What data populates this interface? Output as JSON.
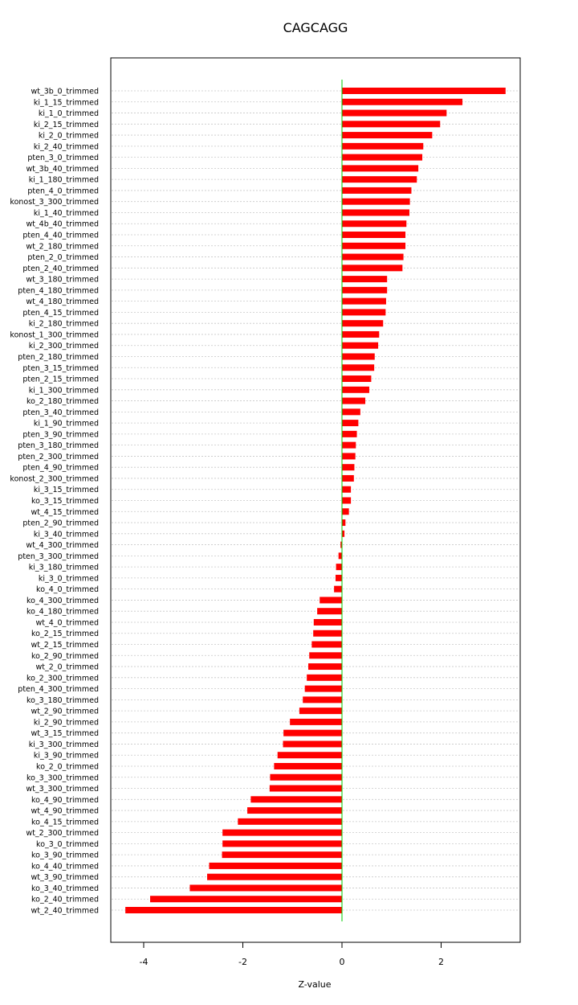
{
  "chart_data": {
    "type": "bar",
    "orientation": "horizontal",
    "title": "CAGCAGG",
    "xlabel": "Z-value",
    "ylabel": "",
    "xlim": [
      -4.6,
      3.6
    ],
    "xticks": [
      -4,
      -2,
      0,
      2
    ],
    "xtick_labels": [
      "-4",
      "-2",
      "0",
      "2"
    ],
    "grid": "horizontal dotted",
    "bar_color": "#ff0000",
    "zero_line_color": "#00cc00",
    "categories": [
      "wt_3b_0_trimmed",
      "ki_1_15_trimmed",
      "ki_1_0_trimmed",
      "ki_2_15_trimmed",
      "ki_2_0_trimmed",
      "ki_2_40_trimmed",
      "pten_3_0_trimmed",
      "wt_3b_40_trimmed",
      "ki_1_180_trimmed",
      "pten_4_0_trimmed",
      "konost_3_300_trimmed",
      "ki_1_40_trimmed",
      "wt_4b_40_trimmed",
      "pten_4_40_trimmed",
      "wt_2_180_trimmed",
      "pten_2_0_trimmed",
      "pten_2_40_trimmed",
      "wt_3_180_trimmed",
      "pten_4_180_trimmed",
      "wt_4_180_trimmed",
      "pten_4_15_trimmed",
      "ki_2_180_trimmed",
      "konost_1_300_trimmed",
      "ki_2_300_trimmed",
      "pten_2_180_trimmed",
      "pten_3_15_trimmed",
      "pten_2_15_trimmed",
      "ki_1_300_trimmed",
      "ko_2_180_trimmed",
      "pten_3_40_trimmed",
      "ki_1_90_trimmed",
      "pten_3_90_trimmed",
      "pten_3_180_trimmed",
      "pten_2_300_trimmed",
      "pten_4_90_trimmed",
      "konost_2_300_trimmed",
      "ki_3_15_trimmed",
      "ko_3_15_trimmed",
      "wt_4_15_trimmed",
      "pten_2_90_trimmed",
      "ki_3_40_trimmed",
      "wt_4_300_trimmed",
      "pten_3_300_trimmed",
      "ki_3_180_trimmed",
      "ki_3_0_trimmed",
      "ko_4_0_trimmed",
      "ko_4_300_trimmed",
      "ko_4_180_trimmed",
      "wt_4_0_trimmed",
      "ko_2_15_trimmed",
      "wt_2_15_trimmed",
      "ko_2_90_trimmed",
      "wt_2_0_trimmed",
      "ko_2_300_trimmed",
      "pten_4_300_trimmed",
      "ko_3_180_trimmed",
      "wt_2_90_trimmed",
      "ki_2_90_trimmed",
      "wt_3_15_trimmed",
      "ki_3_300_trimmed",
      "ki_3_90_trimmed",
      "ko_2_0_trimmed",
      "ko_3_300_trimmed",
      "wt_3_300_trimmed",
      "ko_4_90_trimmed",
      "wt_4_90_trimmed",
      "ko_4_15_trimmed",
      "wt_2_300_trimmed",
      "ko_3_0_trimmed",
      "ko_3_90_trimmed",
      "ko_4_40_trimmed",
      "wt_3_90_trimmed",
      "ko_3_40_trimmed",
      "ko_2_40_trimmed",
      "wt_2_40_trimmed"
    ],
    "values": [
      3.3,
      2.43,
      2.11,
      1.98,
      1.82,
      1.64,
      1.62,
      1.54,
      1.51,
      1.4,
      1.37,
      1.36,
      1.3,
      1.28,
      1.28,
      1.24,
      1.22,
      0.91,
      0.91,
      0.89,
      0.88,
      0.83,
      0.75,
      0.73,
      0.66,
      0.65,
      0.59,
      0.55,
      0.47,
      0.37,
      0.33,
      0.3,
      0.28,
      0.27,
      0.25,
      0.24,
      0.18,
      0.18,
      0.14,
      0.07,
      0.05,
      -0.03,
      -0.07,
      -0.12,
      -0.13,
      -0.16,
      -0.45,
      -0.5,
      -0.57,
      -0.58,
      -0.61,
      -0.66,
      -0.68,
      -0.71,
      -0.75,
      -0.79,
      -0.86,
      -1.05,
      -1.18,
      -1.19,
      -1.3,
      -1.37,
      -1.45,
      -1.46,
      -1.84,
      -1.91,
      -2.1,
      -2.41,
      -2.41,
      -2.42,
      -2.68,
      -2.72,
      -3.07,
      -3.87,
      -4.37
    ]
  }
}
